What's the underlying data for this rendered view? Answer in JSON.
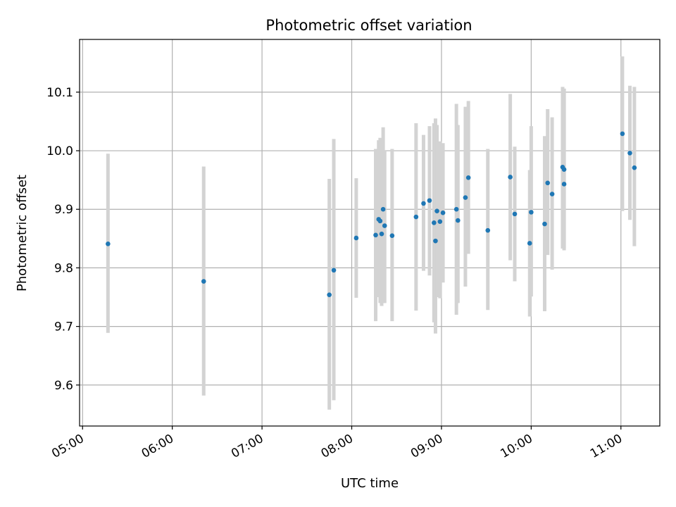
{
  "chart_data": {
    "type": "scatter",
    "title": "Photometric offset variation",
    "xlabel": "UTC time",
    "ylabel": "Photometric offset",
    "x_unit": "hours UTC",
    "xlim": [
      "04:58",
      "11:26"
    ],
    "ylim": [
      9.53,
      10.19
    ],
    "x_ticks": [
      "05:00",
      "06:00",
      "07:00",
      "08:00",
      "09:00",
      "10:00",
      "11:00"
    ],
    "y_ticks": [
      "9.6",
      "9.7",
      "9.8",
      "9.9",
      "10.0",
      "10.1"
    ],
    "grid": true,
    "colors": {
      "points": "#1f77b4",
      "errorbars": "#d3d3d3",
      "grid": "#b0b0b0"
    },
    "series": [
      {
        "x": [
          "05:17",
          "06:21",
          "07:45",
          "07:48",
          "08:03",
          "08:16",
          "08:18",
          "08:19",
          "08:20",
          "08:21",
          "08:22",
          "08:27",
          "08:43",
          "08:48",
          "08:52",
          "08:55",
          "08:56",
          "08:57",
          "08:59",
          "09:01",
          "09:10",
          "09:11",
          "09:16",
          "09:18",
          "09:31",
          "09:46",
          "09:49",
          "09:59",
          "10:00",
          "10:09",
          "10:11",
          "10:14",
          "10:21",
          "10:22",
          "10:22",
          "11:01",
          "11:06",
          "11:09"
        ],
        "y": [
          9.841,
          9.777,
          9.754,
          9.796,
          9.851,
          9.856,
          9.883,
          9.88,
          9.858,
          9.9,
          9.872,
          9.855,
          9.887,
          9.91,
          9.915,
          9.877,
          9.846,
          9.897,
          9.879,
          9.894,
          9.9,
          9.881,
          9.92,
          9.954,
          9.864,
          9.955,
          9.892,
          9.842,
          9.895,
          9.875,
          9.945,
          9.926,
          9.972,
          9.968,
          9.943,
          10.029,
          9.996,
          9.971
        ],
        "err_low": [
          9.689,
          9.582,
          9.558,
          9.574,
          9.749,
          9.709,
          9.75,
          9.74,
          9.735,
          9.74,
          9.74,
          9.709,
          9.727,
          9.795,
          9.787,
          9.707,
          9.688,
          9.75,
          9.748,
          9.775,
          9.72,
          9.74,
          9.768,
          9.824,
          9.728,
          9.813,
          9.777,
          9.717,
          9.751,
          9.726,
          9.822,
          9.797,
          9.833,
          9.83,
          9.833,
          9.897,
          9.882,
          9.837
        ],
        "err_high": [
          9.995,
          9.973,
          9.952,
          10.02,
          9.953,
          10.003,
          10.018,
          10.022,
          10.0,
          10.04,
          10.0,
          10.003,
          10.047,
          10.027,
          10.042,
          10.047,
          10.055,
          10.044,
          10.016,
          10.013,
          10.08,
          10.044,
          10.075,
          10.085,
          10.003,
          10.097,
          10.007,
          9.967,
          10.042,
          10.025,
          10.071,
          10.057,
          10.109,
          10.106,
          10.106,
          10.161,
          10.111,
          10.109
        ]
      }
    ]
  }
}
